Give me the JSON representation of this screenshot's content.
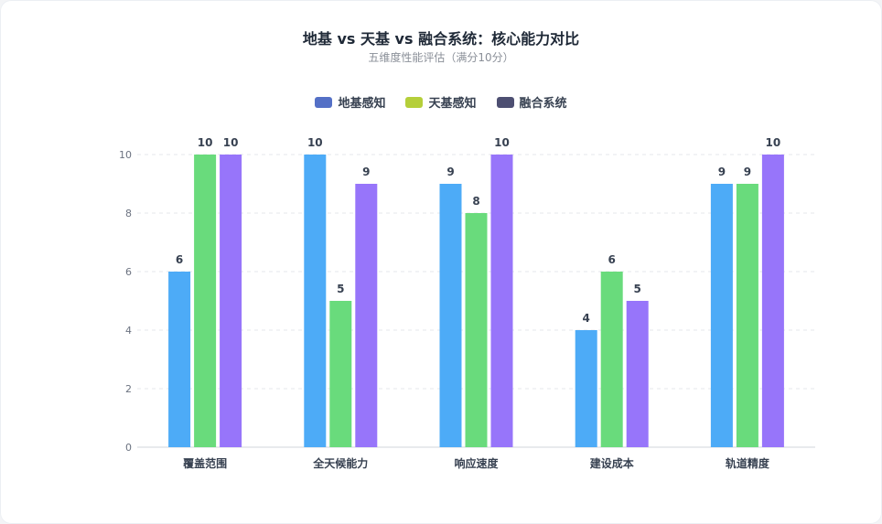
{
  "title": "地基 vs 天基 vs 融合系统：核心能力对比",
  "subtitle": "五维度性能评估（满分10分）",
  "legend": [
    {
      "label": "地基感知",
      "color": "#5470c6"
    },
    {
      "label": "天基感知",
      "color": "#b5cf3a"
    },
    {
      "label": "融合系统",
      "color": "#4d4f72"
    }
  ],
  "chart_data": {
    "type": "bar",
    "categories": [
      "覆盖范围",
      "全天候能力",
      "响应速度",
      "建设成本",
      "轨道精度"
    ],
    "series": [
      {
        "name": "地基感知",
        "values": [
          6,
          10,
          9,
          4,
          9
        ],
        "color": "#4dabf7"
      },
      {
        "name": "天基感知",
        "values": [
          10,
          5,
          8,
          6,
          9
        ],
        "color": "#69db7c"
      },
      {
        "name": "融合系统",
        "values": [
          10,
          9,
          10,
          5,
          10
        ],
        "color": "#9775fa"
      }
    ],
    "ylim": [
      0,
      10
    ],
    "yticks": [
      0,
      2,
      4,
      6,
      8,
      10
    ],
    "grid": true,
    "legend_position": "top-center"
  }
}
